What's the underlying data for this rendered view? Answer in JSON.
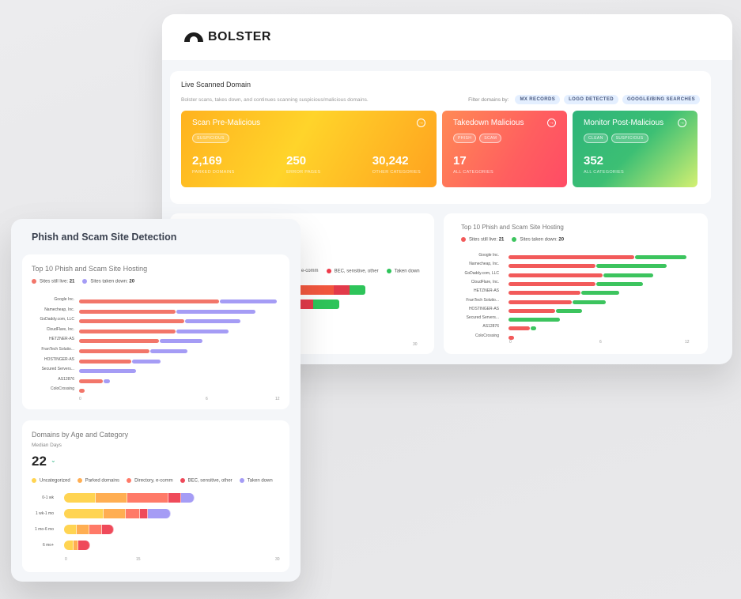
{
  "back_window": {
    "logo": {
      "text": "BOLSTER"
    },
    "live": {
      "title": "Live Scanned Domain",
      "description": "Bolster scans, takes down, and continues scanning suspicious/malicious domains.",
      "filter_label": "Filter domains by:",
      "filters": [
        "MX RECORDS",
        "LOGO DETECTED",
        "GOOGLE/BING SEARCHES"
      ]
    },
    "cards": [
      {
        "title": "Scan Pre-Malicious",
        "tags": [
          "SUSPICIOUS"
        ],
        "stats": [
          {
            "value": "2,169",
            "label": "PARKED DOMAINS"
          },
          {
            "value": "250",
            "label": "ERROR PAGES"
          },
          {
            "value": "30,242",
            "label": "OTHER CATEGORIES"
          }
        ]
      },
      {
        "title": "Takedown Malicious",
        "tags": [
          "PHISH",
          "SCAM"
        ],
        "stats": [
          {
            "value": "17",
            "label": "ALL CATEGORIES"
          }
        ]
      },
      {
        "title": "Monitor Post-Malicious",
        "tags": [
          "CLEAN",
          "SUSPICIOUS"
        ],
        "stats": [
          {
            "value": "352",
            "label": "ALL CATEGORIES"
          }
        ]
      }
    ],
    "partial_legend": [
      "y, e-comm",
      "BEC, sensitive, other",
      "Taken down"
    ],
    "partial_axis_max": "30",
    "hosting_chart": {
      "title": "Top 10 Phish and Scam Site Hosting",
      "legend": [
        {
          "label": "Sites still live:",
          "count": "21",
          "color": "#f25a5a"
        },
        {
          "label": "Sites taken down:",
          "count": "20",
          "color": "#3cc45e"
        }
      ],
      "axis": [
        "0",
        "6",
        "12"
      ]
    }
  },
  "front_window": {
    "title": "Phish and Scam Site Detection",
    "hosting_chart": {
      "title": "Top 10 Phish and Scam Site Hosting",
      "legend": [
        {
          "label": "Sites still live:",
          "count": "21",
          "color": "#f2766a"
        },
        {
          "label": "Sites taken down:",
          "count": "20",
          "color": "#a59cf5"
        }
      ],
      "axis": [
        "0",
        "6",
        "12"
      ]
    },
    "age_chart": {
      "title": "Domains by Age and Category",
      "median_label": "Median Days",
      "median_value": "22",
      "legend": [
        {
          "label": "Uncategorized",
          "color": "#ffd452"
        },
        {
          "label": "Parked domains",
          "color": "#ffae52"
        },
        {
          "label": "Directory, e-comm",
          "color": "#ff7a68"
        },
        {
          "label": "BEC, sensitive, other",
          "color": "#ef4a5a"
        },
        {
          "label": "Taken down",
          "color": "#a59cf5"
        }
      ],
      "axis": [
        "0",
        "15",
        "30"
      ]
    }
  },
  "chart_data": [
    {
      "type": "bar",
      "title": "Top 10 Phish and Scam Site Hosting",
      "categories": [
        "Google Inc.",
        "Namecheap, Inc.",
        "GoDaddy.com, LLC",
        "CloudFlare, Inc.",
        "HETZNER-AS",
        "FranTech Solutio...",
        "HOSTINGER-AS",
        "Secured Servers...",
        "AS12876",
        "ColoCrossing"
      ],
      "series": [
        {
          "name": "Sites still live",
          "values": [
            8.5,
            5.9,
            6.4,
            5.9,
            4.9,
            4.3,
            3.2,
            0,
            1.5,
            0.4
          ]
        },
        {
          "name": "Sites taken down",
          "values": [
            3.5,
            4.8,
            3.4,
            3.2,
            2.6,
            2.3,
            1.8,
            3.5,
            0.4,
            0
          ]
        }
      ],
      "xlim": [
        0,
        12
      ],
      "orientation": "horizontal",
      "stacked": true
    },
    {
      "type": "bar",
      "title": "Domains by Age and Category",
      "categories": [
        "0-1 wk",
        "1 wk-1 mo",
        "1 mo-6 mo",
        "6 mo+"
      ],
      "series": [
        {
          "name": "Uncategorized",
          "values": [
            4.5,
            5.6,
            1.8,
            1.4
          ]
        },
        {
          "name": "Parked domains",
          "values": [
            4.5,
            3.2,
            1.8,
            0.6
          ]
        },
        {
          "name": "Directory, e-comm",
          "values": [
            5.8,
            2.0,
            1.8,
            0
          ]
        },
        {
          "name": "BEC, sensitive, other",
          "values": [
            1.8,
            1.1,
            1.7,
            1.7
          ]
        },
        {
          "name": "Taken down",
          "values": [
            1.9,
            3.3,
            0,
            0
          ]
        }
      ],
      "xlim": [
        0,
        30
      ],
      "orientation": "horizontal",
      "stacked": true
    }
  ]
}
